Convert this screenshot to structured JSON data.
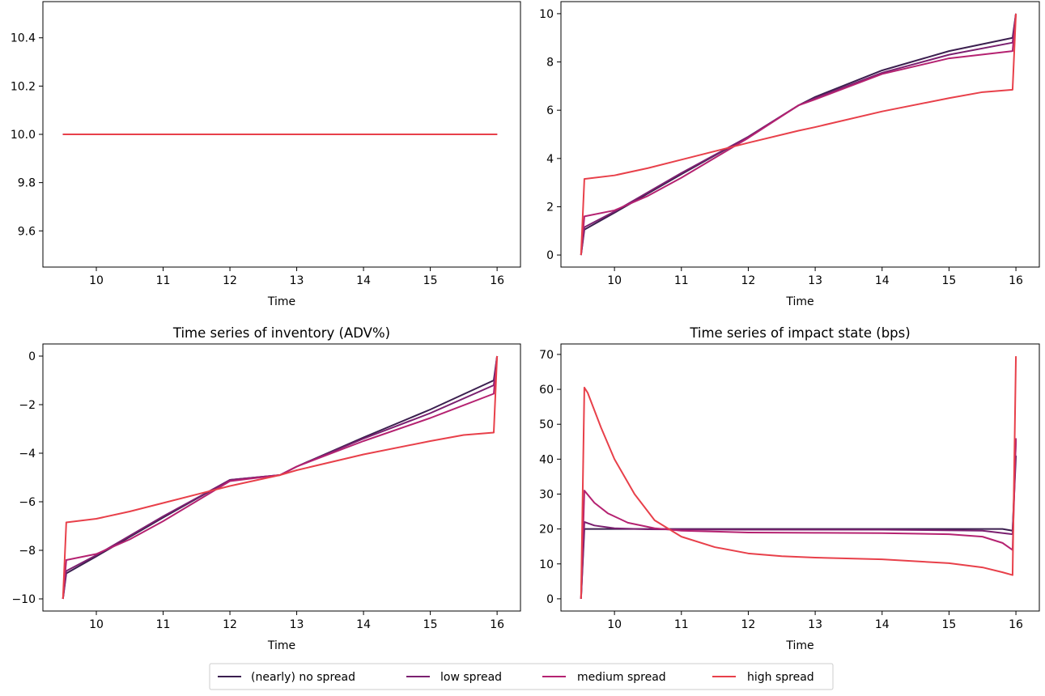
{
  "colors": {
    "nearly_no_spread": "#3b1f4f",
    "low_spread": "#7b2070",
    "medium_spread": "#b52271",
    "high_spread": "#e8404a"
  },
  "legend": {
    "items": [
      {
        "label": "(nearly) no spread",
        "color": "#3b1f4f"
      },
      {
        "label": "low spread",
        "color": "#7b2070"
      },
      {
        "label": "medium spread",
        "color": "#b52271"
      },
      {
        "label": "high spread",
        "color": "#e8404a"
      }
    ]
  },
  "chart_data": [
    {
      "type": "line",
      "title": "",
      "xlabel": "Time",
      "ylabel": "",
      "xlim": [
        9.2,
        16.35
      ],
      "ylim": [
        9.45,
        10.55
      ],
      "xticks": [
        10,
        11,
        12,
        13,
        14,
        15,
        16
      ],
      "yticks": [
        9.6,
        9.8,
        10.0,
        10.2,
        10.4
      ],
      "ytick_labels": [
        "9.6",
        "9.8",
        "10.0",
        "10.2",
        "10.4"
      ],
      "series": [
        {
          "name": "(nearly) no spread",
          "color": "#3b1f4f",
          "x": [
            9.5,
            16.0
          ],
          "y": [
            10.0,
            10.0
          ]
        },
        {
          "name": "low spread",
          "color": "#7b2070",
          "x": [
            9.5,
            16.0
          ],
          "y": [
            10.0,
            10.0
          ]
        },
        {
          "name": "medium spread",
          "color": "#b52271",
          "x": [
            9.5,
            16.0
          ],
          "y": [
            10.0,
            10.0
          ]
        },
        {
          "name": "high spread",
          "color": "#e8404a",
          "x": [
            9.5,
            16.0
          ],
          "y": [
            10.0,
            10.0
          ]
        }
      ]
    },
    {
      "type": "line",
      "title": "",
      "xlabel": "Time",
      "ylabel": "",
      "xlim": [
        9.2,
        16.35
      ],
      "ylim": [
        -0.5,
        10.5
      ],
      "xticks": [
        10,
        11,
        12,
        13,
        14,
        15,
        16
      ],
      "yticks": [
        0,
        2,
        4,
        6,
        8,
        10
      ],
      "ytick_labels": [
        "0",
        "2",
        "4",
        "6",
        "8",
        "10"
      ],
      "series": [
        {
          "name": "(nearly) no spread",
          "color": "#3b1f4f",
          "x": [
            9.5,
            9.55,
            10.0,
            11.0,
            12.0,
            12.75,
            13.0,
            14.0,
            15.0,
            15.95,
            16.0
          ],
          "y": [
            0.0,
            1.05,
            1.75,
            3.35,
            4.9,
            6.2,
            6.55,
            7.65,
            8.45,
            9.0,
            10.0
          ]
        },
        {
          "name": "low spread",
          "color": "#7b2070",
          "x": [
            9.5,
            9.55,
            10.0,
            11.0,
            12.0,
            12.75,
            13.0,
            14.0,
            15.0,
            15.95,
            16.0
          ],
          "y": [
            0.0,
            1.15,
            1.8,
            3.4,
            4.9,
            6.2,
            6.5,
            7.55,
            8.3,
            8.8,
            10.0
          ]
        },
        {
          "name": "medium spread",
          "color": "#b52271",
          "x": [
            9.5,
            9.55,
            10.0,
            10.5,
            11.0,
            12.0,
            12.75,
            13.0,
            14.0,
            15.0,
            15.95,
            16.0
          ],
          "y": [
            0.0,
            1.6,
            1.85,
            2.45,
            3.2,
            4.85,
            6.2,
            6.45,
            7.5,
            8.15,
            8.45,
            10.0
          ]
        },
        {
          "name": "high spread",
          "color": "#e8404a",
          "x": [
            9.5,
            9.55,
            10.0,
            10.5,
            11.0,
            12.0,
            12.75,
            13.0,
            14.0,
            15.0,
            15.5,
            15.95,
            16.0
          ],
          "y": [
            0.0,
            3.15,
            3.3,
            3.6,
            3.95,
            4.65,
            5.15,
            5.3,
            5.95,
            6.5,
            6.75,
            6.85,
            10.0
          ]
        }
      ]
    },
    {
      "type": "line",
      "title": "Time series of inventory (ADV%)",
      "xlabel": "Time",
      "ylabel": "",
      "xlim": [
        9.2,
        16.35
      ],
      "ylim": [
        -10.5,
        0.5
      ],
      "xticks": [
        10,
        11,
        12,
        13,
        14,
        15,
        16
      ],
      "yticks": [
        -10,
        -8,
        -6,
        -4,
        -2,
        0
      ],
      "ytick_labels": [
        "−10",
        "−8",
        "−6",
        "−4",
        "−2",
        "0"
      ],
      "series": [
        {
          "name": "(nearly) no spread",
          "color": "#3b1f4f",
          "x": [
            9.5,
            9.55,
            10.0,
            11.0,
            12.0,
            12.75,
            13.0,
            14.0,
            15.0,
            15.95,
            16.0
          ],
          "y": [
            -10.0,
            -8.95,
            -8.25,
            -6.65,
            -5.1,
            -4.9,
            -4.55,
            -3.35,
            -2.2,
            -1.0,
            0.0
          ]
        },
        {
          "name": "low spread",
          "color": "#7b2070",
          "x": [
            9.5,
            9.55,
            10.0,
            11.0,
            12.0,
            12.75,
            13.0,
            14.0,
            15.0,
            15.95,
            16.0
          ],
          "y": [
            -10.0,
            -8.85,
            -8.2,
            -6.6,
            -5.1,
            -4.9,
            -4.55,
            -3.4,
            -2.35,
            -1.2,
            0.0
          ]
        },
        {
          "name": "medium spread",
          "color": "#b52271",
          "x": [
            9.5,
            9.55,
            10.0,
            10.5,
            11.0,
            12.0,
            12.75,
            13.0,
            14.0,
            15.0,
            15.95,
            16.0
          ],
          "y": [
            -10.0,
            -8.4,
            -8.15,
            -7.55,
            -6.8,
            -5.15,
            -4.9,
            -4.55,
            -3.5,
            -2.55,
            -1.55,
            0.0
          ]
        },
        {
          "name": "high spread",
          "color": "#e8404a",
          "x": [
            9.5,
            9.55,
            10.0,
            10.5,
            11.0,
            12.0,
            12.75,
            13.0,
            14.0,
            15.0,
            15.5,
            15.95,
            16.0
          ],
          "y": [
            -10.0,
            -6.85,
            -6.7,
            -6.4,
            -6.05,
            -5.35,
            -4.9,
            -4.7,
            -4.05,
            -3.5,
            -3.25,
            -3.15,
            0.0
          ]
        }
      ]
    },
    {
      "type": "line",
      "title": "Time series of impact state (bps)",
      "xlabel": "Time",
      "ylabel": "",
      "xlim": [
        9.2,
        16.35
      ],
      "ylim": [
        -3.5,
        73.0
      ],
      "xticks": [
        10,
        11,
        12,
        13,
        14,
        15,
        16
      ],
      "yticks": [
        0,
        10,
        20,
        30,
        40,
        50,
        60,
        70
      ],
      "ytick_labels": [
        "0",
        "10",
        "20",
        "30",
        "40",
        "50",
        "60",
        "70"
      ],
      "series": [
        {
          "name": "(nearly) no spread",
          "color": "#3b1f4f",
          "x": [
            9.5,
            9.55,
            10.0,
            12.0,
            14.0,
            15.8,
            15.95,
            16.0
          ],
          "y": [
            0.0,
            20.0,
            20.0,
            20.0,
            20.0,
            20.0,
            19.5,
            41.0
          ]
        },
        {
          "name": "low spread",
          "color": "#7b2070",
          "x": [
            9.5,
            9.55,
            9.7,
            10.0,
            10.5,
            12.0,
            14.0,
            15.5,
            15.95,
            16.0
          ],
          "y": [
            0.0,
            22.0,
            21.0,
            20.2,
            19.9,
            19.8,
            19.8,
            19.5,
            18.5,
            45.5
          ]
        },
        {
          "name": "medium spread",
          "color": "#b52271",
          "x": [
            9.5,
            9.55,
            9.7,
            9.9,
            10.2,
            10.6,
            11.0,
            12.0,
            13.0,
            14.0,
            15.0,
            15.5,
            15.8,
            15.95,
            16.0
          ],
          "y": [
            0.0,
            31.0,
            27.5,
            24.5,
            21.8,
            20.2,
            19.5,
            19.0,
            18.9,
            18.8,
            18.5,
            17.8,
            16.0,
            14.0,
            46.0
          ]
        },
        {
          "name": "high spread",
          "color": "#e8404a",
          "x": [
            9.5,
            9.55,
            9.6,
            9.8,
            10.0,
            10.3,
            10.6,
            11.0,
            11.5,
            12.0,
            12.5,
            13.0,
            14.0,
            15.0,
            15.5,
            15.8,
            15.95,
            16.0
          ],
          "y": [
            0.0,
            60.5,
            59.0,
            49.0,
            40.0,
            30.0,
            22.5,
            17.8,
            14.8,
            13.0,
            12.2,
            11.8,
            11.3,
            10.2,
            9.0,
            7.6,
            6.8,
            69.5
          ]
        }
      ]
    }
  ]
}
